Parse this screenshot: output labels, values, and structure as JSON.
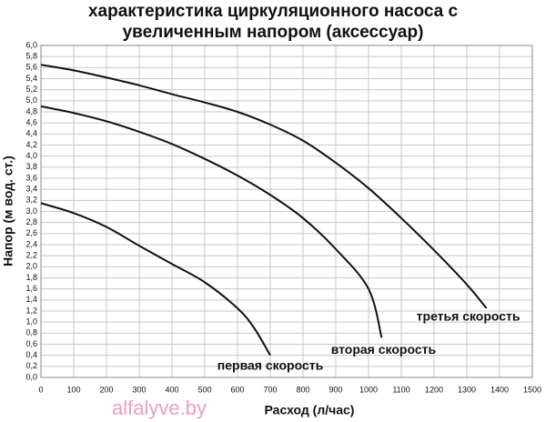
{
  "chart_data": {
    "type": "line",
    "title": [
      "характеристика циркуляционного насоса с",
      "увеличенным напором (аксессуар)"
    ],
    "y_label": "Напор (м вод. ст.)",
    "x_label": "Расход (л/час)",
    "xlim": [
      0,
      1500
    ],
    "xticks": [
      0,
      100,
      200,
      300,
      400,
      500,
      600,
      700,
      800,
      900,
      1000,
      1100,
      1200,
      1300,
      1400,
      1500
    ],
    "ylim": [
      0,
      6
    ],
    "yticks": [
      {
        "value": 0,
        "label": "0,0"
      },
      {
        "value": 0.2,
        "label": "0,2"
      },
      {
        "value": 0.4,
        "label": "0,4"
      },
      {
        "value": 0.6,
        "label": "0,6"
      },
      {
        "value": 0.8,
        "label": "0,8"
      },
      {
        "value": 1,
        "label": "1,0"
      },
      {
        "value": 1.2,
        "label": "1,2"
      },
      {
        "value": 1.4,
        "label": "1,4"
      },
      {
        "value": 1.6,
        "label": "1,6"
      },
      {
        "value": 1.8,
        "label": "1,8"
      },
      {
        "value": 2,
        "label": "2,0"
      },
      {
        "value": 2.2,
        "label": "2,2"
      },
      {
        "value": 2.4,
        "label": "2,4"
      },
      {
        "value": 2.6,
        "label": "2,6"
      },
      {
        "value": 2.8,
        "label": "2,8"
      },
      {
        "value": 3,
        "label": "3,0"
      },
      {
        "value": 3.2,
        "label": "3,2"
      },
      {
        "value": 3.4,
        "label": "3,4"
      },
      {
        "value": 3.6,
        "label": "3,6"
      },
      {
        "value": 3.8,
        "label": "3,8"
      },
      {
        "value": 4,
        "label": "4,0"
      },
      {
        "value": 4.2,
        "label": "4,2"
      },
      {
        "value": 4.4,
        "label": "4,4"
      },
      {
        "value": 4.6,
        "label": "4,6"
      },
      {
        "value": 4.8,
        "label": "4,8"
      },
      {
        "value": 5,
        "label": "5,0"
      },
      {
        "value": 5.2,
        "label": "5,2"
      },
      {
        "value": 5.4,
        "label": "5,4"
      },
      {
        "value": 5.6,
        "label": "5,6"
      },
      {
        "value": 5.8,
        "label": "5,8"
      },
      {
        "value": 6,
        "label": "6,0"
      }
    ],
    "grid": true,
    "series": [
      {
        "name": "первая скорость",
        "color": "#111111",
        "x": [
          0,
          100,
          200,
          300,
          400,
          500,
          600,
          650,
          700
        ],
        "values": [
          3.15,
          2.97,
          2.72,
          2.38,
          2.05,
          1.72,
          1.25,
          0.9,
          0.4
        ]
      },
      {
        "name": "вторая скорость",
        "color": "#111111",
        "x": [
          0,
          100,
          200,
          300,
          400,
          500,
          600,
          700,
          800,
          900,
          1000,
          1040
        ],
        "values": [
          4.9,
          4.78,
          4.63,
          4.44,
          4.22,
          3.95,
          3.65,
          3.3,
          2.88,
          2.32,
          1.6,
          0.72
        ]
      },
      {
        "name": "третья скорость",
        "color": "#111111",
        "x": [
          0,
          100,
          200,
          300,
          400,
          500,
          600,
          700,
          800,
          900,
          1000,
          1100,
          1200,
          1300,
          1360
        ],
        "values": [
          5.65,
          5.55,
          5.42,
          5.28,
          5.12,
          4.97,
          4.8,
          4.57,
          4.28,
          3.88,
          3.42,
          2.88,
          2.3,
          1.68,
          1.25
        ]
      }
    ]
  },
  "watermark": "alfalyve.by"
}
